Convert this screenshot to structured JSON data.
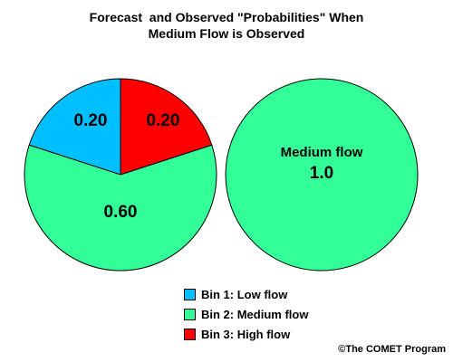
{
  "chart_data": [
    {
      "type": "pie",
      "title": "",
      "slices": [
        {
          "name": "Bin 1: Low flow",
          "value": 0.2,
          "label": "0.20",
          "color": "#00bfff"
        },
        {
          "name": "Bin 3: High flow",
          "value": 0.2,
          "label": "0.20",
          "color": "#ff0000"
        },
        {
          "name": "Bin 2: Medium flow",
          "value": 0.6,
          "label": "0.60",
          "color": "#33ff99"
        }
      ]
    },
    {
      "type": "pie",
      "title": "",
      "slices": [
        {
          "name": "Bin 2: Medium flow",
          "value": 1.0,
          "label": "1.0",
          "category_label": "Medium flow",
          "color": "#33ff99"
        }
      ]
    }
  ],
  "figure": {
    "title_line1": "Forecast  and Observed \"Probabilities\" When",
    "title_line2": "Medium Flow is Observed",
    "credit": "©The COMET Program"
  },
  "legend": {
    "placement": "bottom-center",
    "items": [
      {
        "label": "Bin 1: Low flow",
        "color": "#00bfff"
      },
      {
        "label": "Bin 2: Medium flow",
        "color": "#33ff99"
      },
      {
        "label": "Bin 3: High flow",
        "color": "#ff0000"
      }
    ]
  }
}
